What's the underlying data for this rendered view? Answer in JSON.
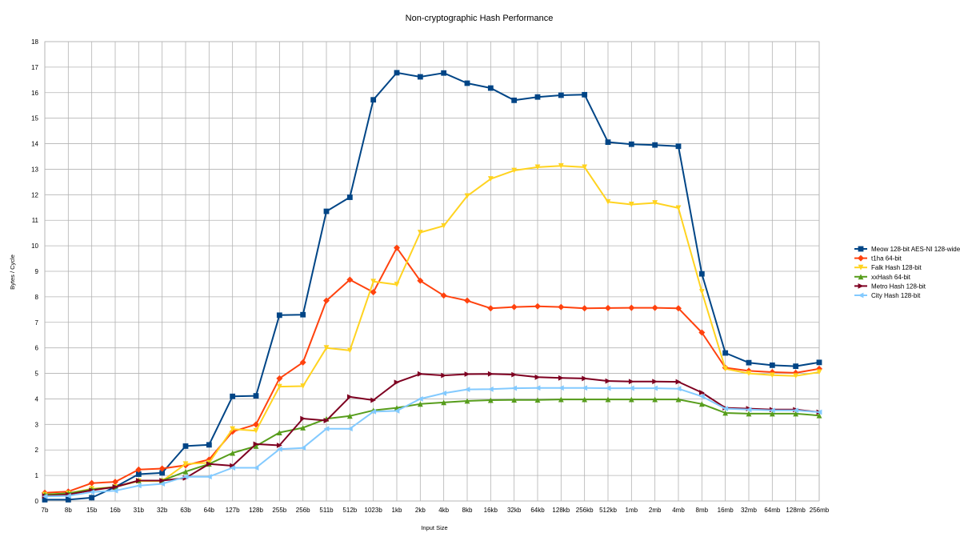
{
  "chart_data": {
    "type": "line",
    "title": "Non-cryptographic Hash Performance",
    "xlabel": "Input Size",
    "ylabel": "Bytes / Cycle",
    "ylim": [
      0,
      18
    ],
    "yticks": [
      "0",
      "1",
      "2",
      "3",
      "4",
      "5",
      "6",
      "7",
      "8",
      "9",
      "10",
      "11",
      "12",
      "13",
      "14",
      "15",
      "16",
      "17",
      "18"
    ],
    "grid": true,
    "legend_position": "right",
    "categories": [
      "7b",
      "8b",
      "15b",
      "16b",
      "31b",
      "32b",
      "63b",
      "64b",
      "127b",
      "128b",
      "255b",
      "256b",
      "511b",
      "512b",
      "1023b",
      "1kb",
      "2kb",
      "4kb",
      "8kb",
      "16kb",
      "32kb",
      "64kb",
      "128kb",
      "256kb",
      "512kb",
      "1mb",
      "2mb",
      "4mb",
      "8mb",
      "16mb",
      "32mb",
      "64mb",
      "128mb",
      "256mb"
    ],
    "series": [
      {
        "name": "Meow 128-bit AES-NI 128-wide",
        "color": "#004586",
        "marker": "square",
        "values": [
          0.05,
          0.05,
          0.13,
          0.55,
          1.05,
          1.1,
          2.15,
          2.2,
          4.1,
          4.12,
          7.28,
          7.3,
          11.35,
          11.9,
          15.72,
          16.78,
          16.62,
          16.77,
          16.37,
          16.18,
          15.7,
          15.83,
          15.9,
          15.92,
          14.06,
          13.98,
          13.95,
          13.9,
          8.9,
          5.8,
          5.42,
          5.32,
          5.28,
          5.43
        ]
      },
      {
        "name": "t1ha 64-bit",
        "color": "#ff420e",
        "marker": "diamond",
        "values": [
          0.32,
          0.37,
          0.7,
          0.75,
          1.23,
          1.27,
          1.4,
          1.62,
          2.72,
          3.0,
          4.8,
          5.43,
          7.85,
          8.67,
          8.18,
          9.92,
          8.63,
          8.05,
          7.85,
          7.55,
          7.6,
          7.63,
          7.6,
          7.55,
          7.56,
          7.57,
          7.57,
          7.55,
          6.6,
          5.22,
          5.1,
          5.05,
          5.02,
          5.18
        ]
      },
      {
        "name": "Falk Hash 128-bit",
        "color": "#ffd320",
        "marker": "triangle-down",
        "values": [
          0.25,
          0.3,
          0.48,
          0.55,
          0.78,
          0.78,
          1.45,
          1.5,
          2.82,
          2.75,
          4.48,
          4.5,
          6.0,
          5.9,
          8.6,
          8.48,
          10.52,
          10.78,
          11.95,
          12.62,
          12.95,
          13.08,
          13.13,
          13.08,
          11.72,
          11.62,
          11.68,
          11.48,
          8.2,
          5.18,
          5.0,
          4.93,
          4.9,
          5.05
        ]
      },
      {
        "name": "xxHash 64-bit",
        "color": "#579d1c",
        "marker": "triangle-up",
        "values": [
          0.25,
          0.3,
          0.45,
          0.55,
          0.8,
          0.8,
          1.15,
          1.45,
          1.88,
          2.15,
          2.68,
          2.87,
          3.22,
          3.33,
          3.55,
          3.65,
          3.8,
          3.86,
          3.92,
          3.95,
          3.96,
          3.96,
          3.98,
          3.98,
          3.98,
          3.98,
          3.98,
          3.98,
          3.8,
          3.45,
          3.42,
          3.42,
          3.42,
          3.35
        ]
      },
      {
        "name": "Metro Hash 128-bit",
        "color": "#7e0021",
        "marker": "triangle-right",
        "values": [
          0.2,
          0.25,
          0.42,
          0.55,
          0.8,
          0.8,
          0.9,
          1.45,
          1.38,
          2.23,
          2.18,
          3.23,
          3.15,
          4.08,
          3.95,
          4.65,
          4.98,
          4.92,
          4.97,
          4.98,
          4.95,
          4.85,
          4.82,
          4.8,
          4.7,
          4.68,
          4.68,
          4.67,
          4.25,
          3.65,
          3.62,
          3.58,
          3.58,
          3.48
        ]
      },
      {
        "name": "City Hash 128-bit",
        "color": "#83caff",
        "marker": "triangle-left",
        "values": [
          0.18,
          0.2,
          0.35,
          0.4,
          0.6,
          0.67,
          0.95,
          0.95,
          1.3,
          1.3,
          2.03,
          2.08,
          2.83,
          2.83,
          3.5,
          3.53,
          4.0,
          4.22,
          4.37,
          4.38,
          4.42,
          4.43,
          4.43,
          4.43,
          4.42,
          4.42,
          4.42,
          4.4,
          4.1,
          3.62,
          3.58,
          3.55,
          3.55,
          3.48
        ]
      }
    ]
  }
}
